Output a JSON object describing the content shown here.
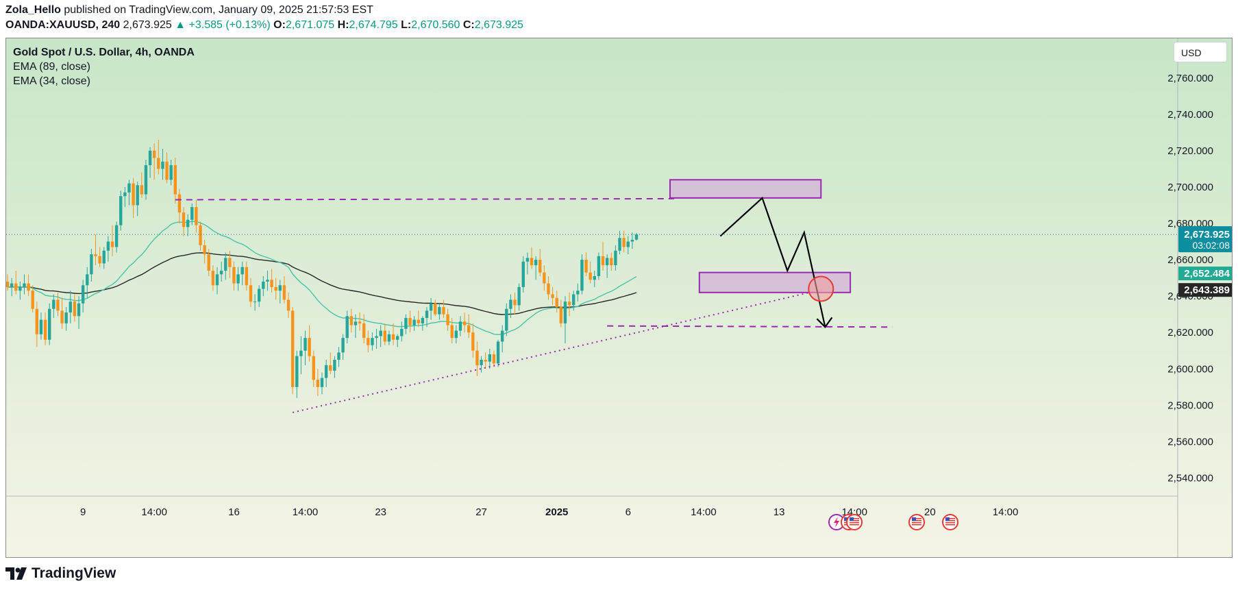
{
  "header": {
    "author": "Zola_Hello",
    "published_text": "published on TradingView.com, January 09, 2025 21:57:53 EST",
    "symbol": "OANDA:XAUUSD, 240",
    "last": "2,673.925",
    "change": "▲ +3.585 (+0.13%)",
    "o_label": "O:",
    "o_value": "2,671.075",
    "h_label": "H:",
    "h_value": "2,674.795",
    "l_label": "L:",
    "l_value": "2,670.560",
    "c_label": "C:",
    "c_value": "2,673.925"
  },
  "legend": {
    "title": "Gold Spot / U.S. Dollar, 4h, OANDA",
    "ema1": "EMA (89, close)",
    "ema2": "EMA (34, close)"
  },
  "currency_button": "USD",
  "footer": {
    "brand": "TradingView"
  },
  "colors": {
    "up": "#26a69a",
    "down": "#f7931a",
    "ema_fast": "#4cc3a6",
    "ema_slow": "#262626",
    "zone_fill": "#d3b8d8",
    "zone_stroke": "#9c27b0",
    "line_purple": "#9c27b0",
    "price_tag": "#0b8e9e",
    "ema_fast_tag": "#22ab94",
    "ema_slow_tag": "#262626",
    "bg_top": "#c8e6c9",
    "bg_bottom": "#f5f4e6"
  },
  "chart_data": {
    "type": "candlestick",
    "symbol": "XAUUSD",
    "timeframe": "4h",
    "ylim": [
      2530,
      2778
    ],
    "y_ticks": [
      "2,540.000",
      "2,560.000",
      "2,580.000",
      "2,600.000",
      "2,620.000",
      "2,640.000",
      "2,660.000",
      "2,680.000",
      "2,700.000",
      "2,720.000",
      "2,740.000",
      "2,760.000"
    ],
    "x_ticks": [
      {
        "label": "9",
        "bar": 18
      },
      {
        "label": "14:00",
        "bar": 35
      },
      {
        "label": "16",
        "bar": 54
      },
      {
        "label": "14:00",
        "bar": 71
      },
      {
        "label": "23",
        "bar": 89
      },
      {
        "label": "27",
        "bar": 113
      },
      {
        "label": "2025",
        "bar": 131,
        "bold": true
      },
      {
        "label": "6",
        "bar": 148
      },
      {
        "label": "14:00",
        "bar": 166
      },
      {
        "label": "13",
        "bar": 184
      },
      {
        "label": "14:00",
        "bar": 202
      },
      {
        "label": "20",
        "bar": 220
      },
      {
        "label": "14:00",
        "bar": 238
      }
    ],
    "candles": [
      [
        2648.0,
        2652.0,
        2643.0,
        2645.0
      ],
      [
        2645.0,
        2650.0,
        2640.0,
        2647.0
      ],
      [
        2647.0,
        2654.0,
        2641.0,
        2643.0
      ],
      [
        2643.0,
        2648.0,
        2638.0,
        2645.0
      ],
      [
        2645.0,
        2652.0,
        2641.0,
        2647.0
      ],
      [
        2647.0,
        2652.0,
        2640.0,
        2643.0
      ],
      [
        2643.0,
        2646.0,
        2631.0,
        2633.0
      ],
      [
        2633.0,
        2637.0,
        2612.0,
        2619.0
      ],
      [
        2619.0,
        2631.0,
        2616.0,
        2627.0
      ],
      [
        2627.0,
        2631.0,
        2613.0,
        2616.0
      ],
      [
        2616.0,
        2636.0,
        2613.0,
        2633.0
      ],
      [
        2633.0,
        2641.0,
        2628.0,
        2638.0
      ],
      [
        2638.0,
        2642.0,
        2629.0,
        2632.0
      ],
      [
        2632.0,
        2639.0,
        2622.0,
        2625.0
      ],
      [
        2625.0,
        2634.0,
        2621.0,
        2631.0
      ],
      [
        2631.0,
        2643.0,
        2625.0,
        2637.0
      ],
      [
        2637.0,
        2641.0,
        2626.0,
        2629.0
      ],
      [
        2629.0,
        2640.0,
        2622.0,
        2636.0
      ],
      [
        2636.0,
        2649.0,
        2631.0,
        2646.0
      ],
      [
        2646.0,
        2656.0,
        2639.0,
        2652.0
      ],
      [
        2652.0,
        2666.0,
        2648.0,
        2663.0
      ],
      [
        2663.0,
        2674.0,
        2657.0,
        2662.0
      ],
      [
        2662.0,
        2667.0,
        2656.0,
        2658.0
      ],
      [
        2658.0,
        2667.0,
        2655.0,
        2665.0
      ],
      [
        2665.0,
        2673.0,
        2659.0,
        2670.0
      ],
      [
        2670.0,
        2679.0,
        2662.0,
        2667.0
      ],
      [
        2667.0,
        2681.0,
        2664.0,
        2679.0
      ],
      [
        2679.0,
        2698.0,
        2676.0,
        2695.0
      ],
      [
        2695.0,
        2700.0,
        2689.0,
        2697.0
      ],
      [
        2697.0,
        2704.0,
        2690.0,
        2702.0
      ],
      [
        2702.0,
        2705.0,
        2683.0,
        2690.0
      ],
      [
        2690.0,
        2703.0,
        2684.0,
        2701.0
      ],
      [
        2701.0,
        2708.0,
        2694.0,
        2696.0
      ],
      [
        2696.0,
        2715.0,
        2693.0,
        2712.0
      ],
      [
        2712.0,
        2722.0,
        2705.0,
        2720.0
      ],
      [
        2720.0,
        2724.0,
        2704.0,
        2716.0
      ],
      [
        2716.0,
        2726.0,
        2707.0,
        2710.0
      ],
      [
        2710.0,
        2721.0,
        2704.0,
        2714.0
      ],
      [
        2714.0,
        2719.0,
        2702.0,
        2704.0
      ],
      [
        2704.0,
        2715.0,
        2701.0,
        2712.0
      ],
      [
        2712.0,
        2716.0,
        2691.0,
        2696.0
      ],
      [
        2696.0,
        2699.0,
        2680.0,
        2686.0
      ],
      [
        2686.0,
        2689.0,
        2673.0,
        2678.0
      ],
      [
        2678.0,
        2685.0,
        2673.0,
        2682.0
      ],
      [
        2682.0,
        2691.0,
        2679.0,
        2689.0
      ],
      [
        2689.0,
        2693.0,
        2675.0,
        2679.0
      ],
      [
        2679.0,
        2681.0,
        2665.0,
        2668.0
      ],
      [
        2668.0,
        2671.0,
        2658.0,
        2663.0
      ],
      [
        2663.0,
        2666.0,
        2651.0,
        2654.0
      ],
      [
        2654.0,
        2657.0,
        2643.0,
        2646.0
      ],
      [
        2646.0,
        2656.0,
        2641.0,
        2652.0
      ],
      [
        2652.0,
        2659.0,
        2648.0,
        2654.0
      ],
      [
        2654.0,
        2664.0,
        2649.0,
        2661.0
      ],
      [
        2661.0,
        2665.0,
        2650.0,
        2656.0
      ],
      [
        2656.0,
        2659.0,
        2643.0,
        2647.0
      ],
      [
        2647.0,
        2656.0,
        2643.0,
        2652.0
      ],
      [
        2652.0,
        2659.0,
        2646.0,
        2656.0
      ],
      [
        2656.0,
        2659.0,
        2643.0,
        2646.0
      ],
      [
        2646.0,
        2650.0,
        2634.0,
        2637.0
      ],
      [
        2637.0,
        2641.0,
        2632.0,
        2637.0
      ],
      [
        2637.0,
        2646.0,
        2634.0,
        2644.0
      ],
      [
        2644.0,
        2651.0,
        2640.0,
        2648.0
      ],
      [
        2648.0,
        2654.0,
        2643.0,
        2649.0
      ],
      [
        2649.0,
        2655.0,
        2642.0,
        2645.0
      ],
      [
        2645.0,
        2650.0,
        2638.0,
        2643.0
      ],
      [
        2643.0,
        2649.0,
        2636.0,
        2646.0
      ],
      [
        2646.0,
        2651.0,
        2636.0,
        2638.0
      ],
      [
        2638.0,
        2642.0,
        2628.0,
        2632.0
      ],
      [
        2632.0,
        2634.0,
        2586.0,
        2590.0
      ],
      [
        2590.0,
        2610.0,
        2584.0,
        2607.0
      ],
      [
        2607.0,
        2618.0,
        2597.0,
        2610.0
      ],
      [
        2610.0,
        2621.0,
        2602.0,
        2617.0
      ],
      [
        2617.0,
        2624.0,
        2604.0,
        2607.0
      ],
      [
        2607.0,
        2610.0,
        2590.0,
        2594.0
      ],
      [
        2594.0,
        2600.0,
        2585.0,
        2590.0
      ],
      [
        2590.0,
        2598.0,
        2586.0,
        2595.0
      ],
      [
        2595.0,
        2605.0,
        2590.0,
        2602.0
      ],
      [
        2602.0,
        2609.0,
        2597.0,
        2599.0
      ],
      [
        2599.0,
        2607.0,
        2595.0,
        2605.0
      ],
      [
        2605.0,
        2612.0,
        2601.0,
        2609.0
      ],
      [
        2609.0,
        2619.0,
        2605.0,
        2617.0
      ],
      [
        2617.0,
        2632.0,
        2614.0,
        2629.0
      ],
      [
        2629.0,
        2633.0,
        2620.0,
        2624.0
      ],
      [
        2624.0,
        2630.0,
        2617.0,
        2626.0
      ],
      [
        2626.0,
        2631.0,
        2621.0,
        2625.0
      ],
      [
        2625.0,
        2630.0,
        2614.0,
        2617.0
      ],
      [
        2617.0,
        2621.0,
        2609.0,
        2613.0
      ],
      [
        2613.0,
        2620.0,
        2610.0,
        2617.0
      ],
      [
        2617.0,
        2622.0,
        2611.0,
        2618.0
      ],
      [
        2618.0,
        2624.0,
        2612.0,
        2621.0
      ],
      [
        2621.0,
        2625.0,
        2613.0,
        2615.0
      ],
      [
        2615.0,
        2621.0,
        2613.0,
        2619.0
      ],
      [
        2619.0,
        2625.0,
        2613.0,
        2616.0
      ],
      [
        2616.0,
        2619.0,
        2612.0,
        2618.0
      ],
      [
        2618.0,
        2626.0,
        2615.0,
        2622.0
      ],
      [
        2622.0,
        2630.0,
        2619.0,
        2628.0
      ],
      [
        2628.0,
        2632.0,
        2620.0,
        2624.0
      ],
      [
        2624.0,
        2629.0,
        2621.0,
        2627.0
      ],
      [
        2627.0,
        2632.0,
        2623.0,
        2625.0
      ],
      [
        2625.0,
        2629.0,
        2621.0,
        2628.0
      ],
      [
        2628.0,
        2634.0,
        2623.0,
        2632.0
      ],
      [
        2632.0,
        2639.0,
        2627.0,
        2636.0
      ],
      [
        2636.0,
        2638.0,
        2629.0,
        2630.0
      ],
      [
        2630.0,
        2636.0,
        2627.0,
        2634.0
      ],
      [
        2634.0,
        2638.0,
        2628.0,
        2630.0
      ],
      [
        2630.0,
        2633.0,
        2621.0,
        2624.0
      ],
      [
        2624.0,
        2628.0,
        2614.0,
        2617.0
      ],
      [
        2617.0,
        2624.0,
        2614.0,
        2621.0
      ],
      [
        2621.0,
        2629.0,
        2618.0,
        2626.0
      ],
      [
        2626.0,
        2631.0,
        2620.0,
        2624.0
      ],
      [
        2624.0,
        2630.0,
        2617.0,
        2620.0
      ],
      [
        2620.0,
        2625.0,
        2606.0,
        2610.0
      ],
      [
        2610.0,
        2615.0,
        2596.0,
        2602.0
      ],
      [
        2602.0,
        2607.0,
        2598.0,
        2605.0
      ],
      [
        2605.0,
        2609.0,
        2600.0,
        2604.0
      ],
      [
        2604.0,
        2611.0,
        2600.0,
        2608.0
      ],
      [
        2608.0,
        2610.0,
        2601.0,
        2603.0
      ],
      [
        2603.0,
        2616.0,
        2601.0,
        2615.0
      ],
      [
        2615.0,
        2624.0,
        2609.0,
        2621.0
      ],
      [
        2621.0,
        2636.0,
        2618.0,
        2633.0
      ],
      [
        2633.0,
        2641.0,
        2628.0,
        2638.0
      ],
      [
        2638.0,
        2642.0,
        2630.0,
        2635.0
      ],
      [
        2635.0,
        2647.0,
        2632.0,
        2645.0
      ],
      [
        2645.0,
        2662.0,
        2642.0,
        2659.0
      ],
      [
        2659.0,
        2664.0,
        2652.0,
        2661.0
      ],
      [
        2661.0,
        2667.0,
        2655.0,
        2657.0
      ],
      [
        2657.0,
        2662.0,
        2649.0,
        2660.0
      ],
      [
        2660.0,
        2666.0,
        2651.0,
        2653.0
      ],
      [
        2653.0,
        2657.0,
        2643.0,
        2647.0
      ],
      [
        2647.0,
        2651.0,
        2638.0,
        2641.0
      ],
      [
        2641.0,
        2645.0,
        2635.0,
        2639.0
      ],
      [
        2639.0,
        2643.0,
        2631.0,
        2634.0
      ],
      [
        2634.0,
        2638.0,
        2623.0,
        2625.0
      ],
      [
        2625.0,
        2640.0,
        2614.0,
        2637.0
      ],
      [
        2637.0,
        2642.0,
        2629.0,
        2635.0
      ],
      [
        2635.0,
        2643.0,
        2632.0,
        2641.0
      ],
      [
        2641.0,
        2647.0,
        2637.0,
        2643.0
      ],
      [
        2643.0,
        2663.0,
        2641.0,
        2660.0
      ],
      [
        2660.0,
        2664.0,
        2651.0,
        2653.0
      ],
      [
        2653.0,
        2659.0,
        2647.0,
        2649.0
      ],
      [
        2649.0,
        2654.0,
        2645.0,
        2651.0
      ],
      [
        2651.0,
        2664.0,
        2649.0,
        2662.0
      ],
      [
        2662.0,
        2670.0,
        2654.0,
        2657.0
      ],
      [
        2657.0,
        2663.0,
        2650.0,
        2661.0
      ],
      [
        2661.0,
        2664.0,
        2654.0,
        2657.0
      ],
      [
        2657.0,
        2668.0,
        2654.0,
        2665.0
      ],
      [
        2665.0,
        2676.0,
        2663.0,
        2672.0
      ],
      [
        2672.0,
        2676.0,
        2664.0,
        2667.0
      ],
      [
        2667.0,
        2673.0,
        2663.0,
        2670.0
      ],
      [
        2670.0,
        2675.0,
        2666.0,
        2671.0
      ],
      [
        2671.075,
        2674.795,
        2670.56,
        2673.925
      ]
    ],
    "ema34_last": 2652.484,
    "ema89_last": 2643.389,
    "price_tag": {
      "value": "2,673.925",
      "countdown": "03:02:08"
    },
    "ema34_tag": "2,652.484",
    "ema89_tag": "2,643.389",
    "annotations": {
      "resistance_zone": {
        "bar_from": 158,
        "bar_to": 194,
        "price_from": 2694,
        "price_to": 2704
      },
      "support_zone": {
        "bar_from": 165,
        "bar_to": 201,
        "price_from": 2642,
        "price_to": 2653
      },
      "resistance_line": {
        "bar_from": 40,
        "bar_to": 159,
        "price": 2693
      },
      "support_line": {
        "bar_from": 143,
        "bar_to": 211,
        "price": 2623
      },
      "trendline": {
        "bar_from": 68,
        "price_from": 2576,
        "bar_to": 195,
        "price_to": 2644
      },
      "projection": [
        [
          170,
          2673
        ],
        [
          180,
          2694
        ],
        [
          186,
          2654
        ],
        [
          190,
          2675
        ],
        [
          195,
          2623
        ]
      ],
      "circle": {
        "bar": 194,
        "price": 2644
      }
    }
  }
}
